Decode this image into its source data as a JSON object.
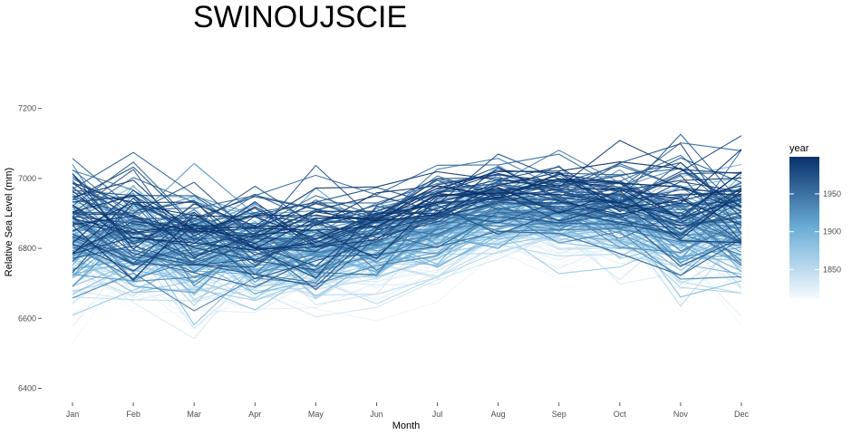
{
  "chart_data": {
    "type": "line",
    "title": "SWINOUJSCIE",
    "xlabel": "Month",
    "ylabel": "Relative Sea Level (mm)",
    "categories": [
      "Jan",
      "Feb",
      "Mar",
      "Apr",
      "May",
      "Jun",
      "Jul",
      "Aug",
      "Sep",
      "Oct",
      "Nov",
      "Dec"
    ],
    "ylim": [
      6370,
      7360
    ],
    "yticks": [
      6400,
      6600,
      6800,
      7000,
      7200
    ],
    "grid": false,
    "legend": {
      "title": "year",
      "placement": "right",
      "type": "colorbar",
      "range": [
        1811,
        1999
      ],
      "ticks": [
        1850,
        1900,
        1950
      ],
      "colors": {
        "low": "#f7fbff",
        "high": "#08306b"
      }
    },
    "series_summary": {
      "description": "one line per year",
      "year_range": [
        1811,
        1999
      ],
      "monthly_mean": [
        6845,
        6830,
        6805,
        6795,
        6800,
        6815,
        6860,
        6910,
        6905,
        6890,
        6865,
        6860
      ],
      "monthly_spread": [
        140,
        130,
        125,
        115,
        100,
        80,
        70,
        65,
        70,
        85,
        110,
        135
      ],
      "trend_per_century": 90
    }
  }
}
